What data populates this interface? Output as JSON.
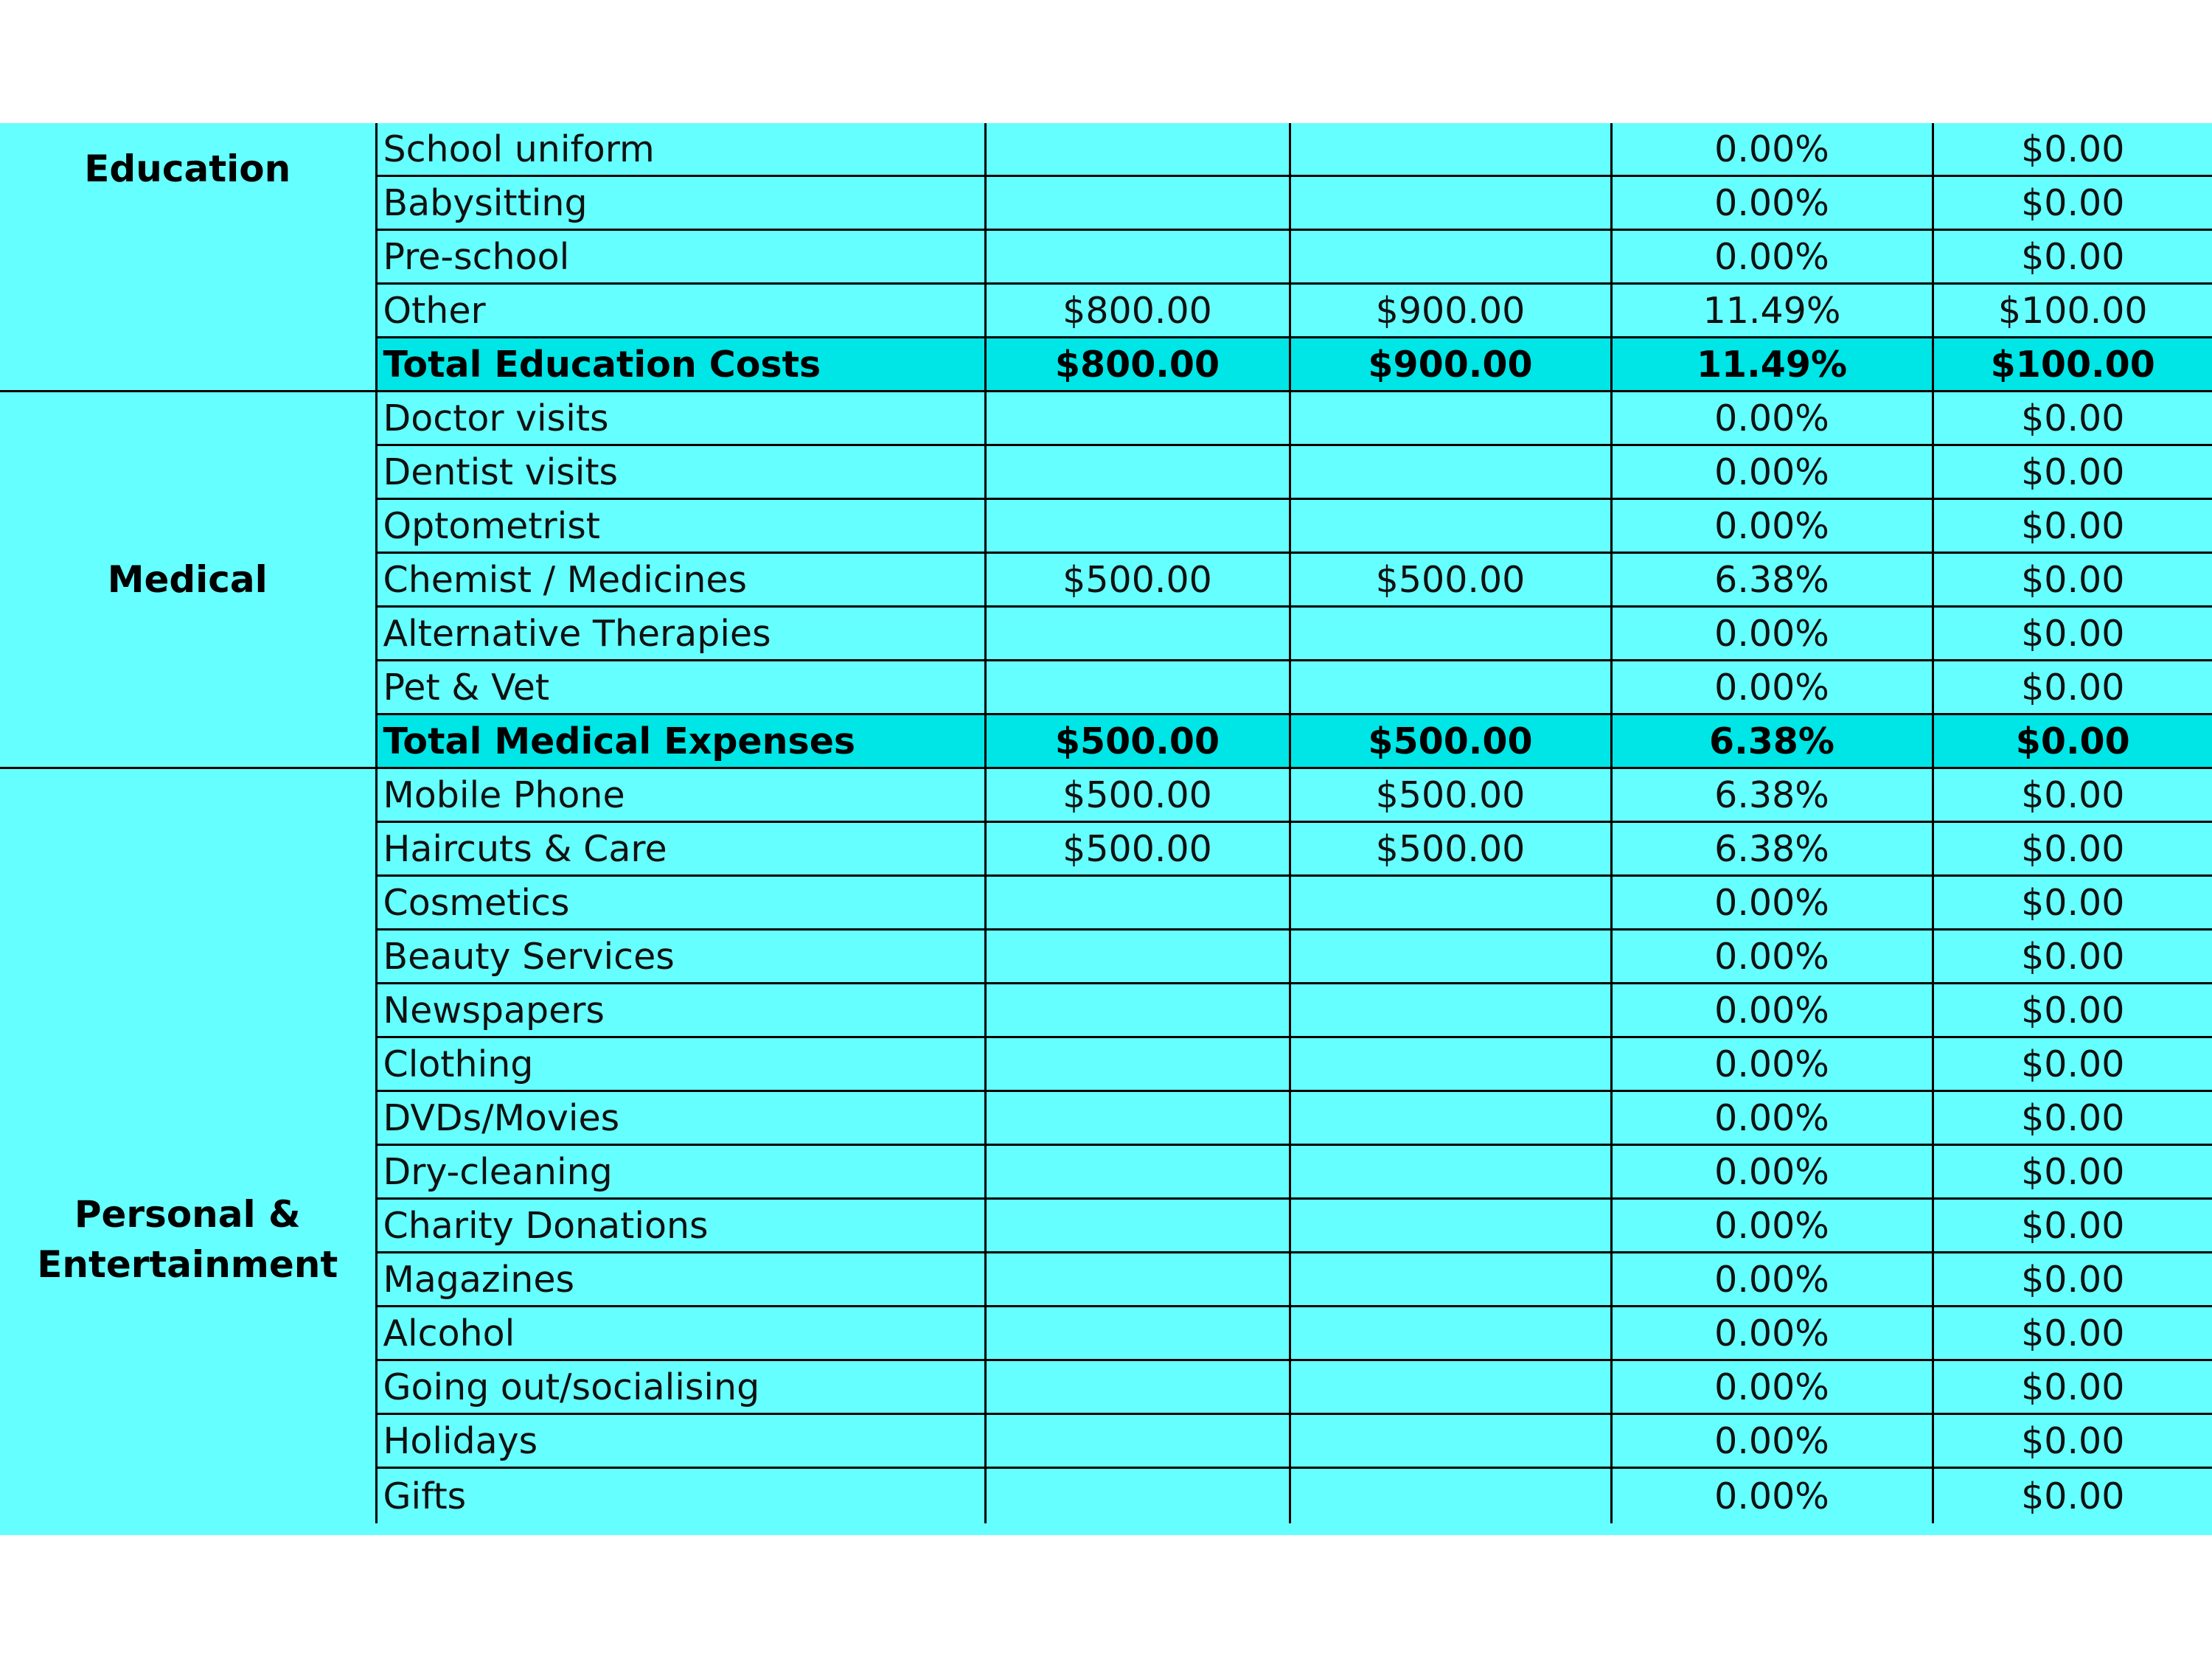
{
  "sheet": {
    "sections": [
      {
        "category": "Education",
        "rows": [
          {
            "item": "School uniform",
            "col_a": "",
            "col_b": "",
            "percent": "0.00%",
            "diff": "$0.00"
          },
          {
            "item": "Babysitting",
            "col_a": "",
            "col_b": "",
            "percent": "0.00%",
            "diff": "$0.00"
          },
          {
            "item": "Pre-school",
            "col_a": "",
            "col_b": "",
            "percent": "0.00%",
            "diff": "$0.00"
          },
          {
            "item": "Other",
            "col_a": "$800.00",
            "col_b": "$900.00",
            "percent": "11.49%",
            "diff": "$100.00"
          }
        ],
        "total": {
          "item": "Total Education Costs",
          "col_a": "$800.00",
          "col_b": "$900.00",
          "percent": "11.49%",
          "diff": "$100.00"
        }
      },
      {
        "category": "Medical",
        "rows": [
          {
            "item": "Doctor visits",
            "col_a": "",
            "col_b": "",
            "percent": "0.00%",
            "diff": "$0.00"
          },
          {
            "item": "Dentist visits",
            "col_a": "",
            "col_b": "",
            "percent": "0.00%",
            "diff": "$0.00"
          },
          {
            "item": "Optometrist",
            "col_a": "",
            "col_b": "",
            "percent": "0.00%",
            "diff": "$0.00"
          },
          {
            "item": "Chemist / Medicines",
            "col_a": "$500.00",
            "col_b": "$500.00",
            "percent": "6.38%",
            "diff": "$0.00"
          },
          {
            "item": "Alternative Therapies",
            "col_a": "",
            "col_b": "",
            "percent": "0.00%",
            "diff": "$0.00"
          },
          {
            "item": "Pet & Vet",
            "col_a": "",
            "col_b": "",
            "percent": "0.00%",
            "diff": "$0.00"
          }
        ],
        "total": {
          "item": "Total Medical Expenses",
          "col_a": "$500.00",
          "col_b": "$500.00",
          "percent": "6.38%",
          "diff": "$0.00"
        }
      },
      {
        "category": "Personal & Entertainment",
        "rows": [
          {
            "item": "Mobile Phone",
            "col_a": "$500.00",
            "col_b": "$500.00",
            "percent": "6.38%",
            "diff": "$0.00"
          },
          {
            "item": "Haircuts & Care",
            "col_a": "$500.00",
            "col_b": "$500.00",
            "percent": "6.38%",
            "diff": "$0.00"
          },
          {
            "item": "Cosmetics",
            "col_a": "",
            "col_b": "",
            "percent": "0.00%",
            "diff": "$0.00"
          },
          {
            "item": "Beauty Services",
            "col_a": "",
            "col_b": "",
            "percent": "0.00%",
            "diff": "$0.00"
          },
          {
            "item": "Newspapers",
            "col_a": "",
            "col_b": "",
            "percent": "0.00%",
            "diff": "$0.00"
          },
          {
            "item": "Clothing",
            "col_a": "",
            "col_b": "",
            "percent": "0.00%",
            "diff": "$0.00"
          },
          {
            "item": "DVDs/Movies",
            "col_a": "",
            "col_b": "",
            "percent": "0.00%",
            "diff": "$0.00"
          },
          {
            "item": "Dry-cleaning",
            "col_a": "",
            "col_b": "",
            "percent": "0.00%",
            "diff": "$0.00"
          },
          {
            "item": "Charity Donations",
            "col_a": "",
            "col_b": "",
            "percent": "0.00%",
            "diff": "$0.00"
          },
          {
            "item": "Magazines",
            "col_a": "",
            "col_b": "",
            "percent": "0.00%",
            "diff": "$0.00"
          },
          {
            "item": "Alcohol",
            "col_a": "",
            "col_b": "",
            "percent": "0.00%",
            "diff": "$0.00"
          },
          {
            "item": "Going out/socialising",
            "col_a": "",
            "col_b": "",
            "percent": "0.00%",
            "diff": "$0.00"
          },
          {
            "item": "Holidays",
            "col_a": "",
            "col_b": "",
            "percent": "0.00%",
            "diff": "$0.00"
          },
          {
            "item": "Gifts",
            "col_a": "",
            "col_b": "",
            "percent": "0.00%",
            "diff": "$0.00"
          }
        ]
      }
    ],
    "colors": {
      "cell_background": "#66ffff",
      "total_row_background": "#00e5e5",
      "page_background": "#ffffff",
      "grid_lines": "#000000"
    }
  }
}
